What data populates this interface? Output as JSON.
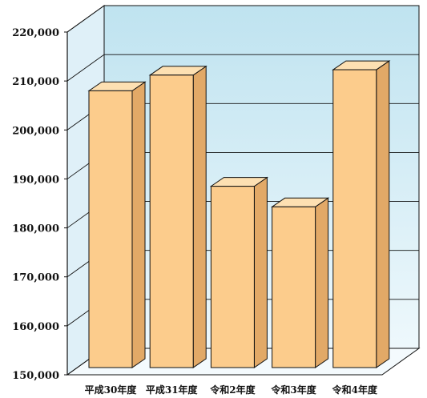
{
  "chart_data": {
    "type": "bar",
    "style": "3d",
    "categories": [
      "平成30年度",
      "平成31年度",
      "令和2年度",
      "令和3年度",
      "令和4年度"
    ],
    "values": [
      208000,
      211200,
      188500,
      184300,
      212300
    ],
    "ylim": [
      150000,
      220000
    ],
    "yticks": [
      150000,
      160000,
      170000,
      180000,
      190000,
      200000,
      210000,
      220000
    ],
    "ytick_labels": [
      "150,000",
      "160,000",
      "170,000",
      "180,000",
      "190,000",
      "200,000",
      "210,000",
      "220,000"
    ],
    "grid": true,
    "legend": "none"
  },
  "colors": {
    "bar_front": "#fccc8c",
    "bar_side": "#e2a967",
    "bar_top": "#fde0b2",
    "back_wall_top": "#bfe3f0",
    "back_wall_bottom": "#eef8fc",
    "side_wall": "#dff0f8",
    "floor": "#f4fafd",
    "line": "#111111"
  }
}
